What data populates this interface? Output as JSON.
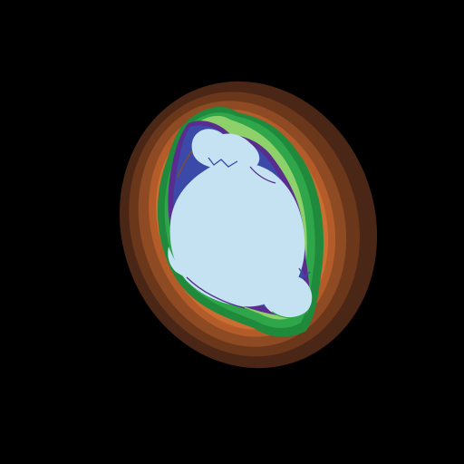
{
  "image": {
    "subject": "fractal",
    "background_color": "#000000",
    "palette": {
      "outer_dark_brown": "#4a2616",
      "dark_brown": "#6b371b",
      "brown": "#8e4a22",
      "orange_brown": "#b35c2a",
      "orange": "#cc6d31",
      "dark_green": "#1f8a3c",
      "green": "#2fa64a",
      "light_green": "#8ed16a",
      "purple": "#5a2c8f",
      "blue_violet": "#3b4aa8",
      "interior_light_blue": "#c4e2f1"
    }
  }
}
